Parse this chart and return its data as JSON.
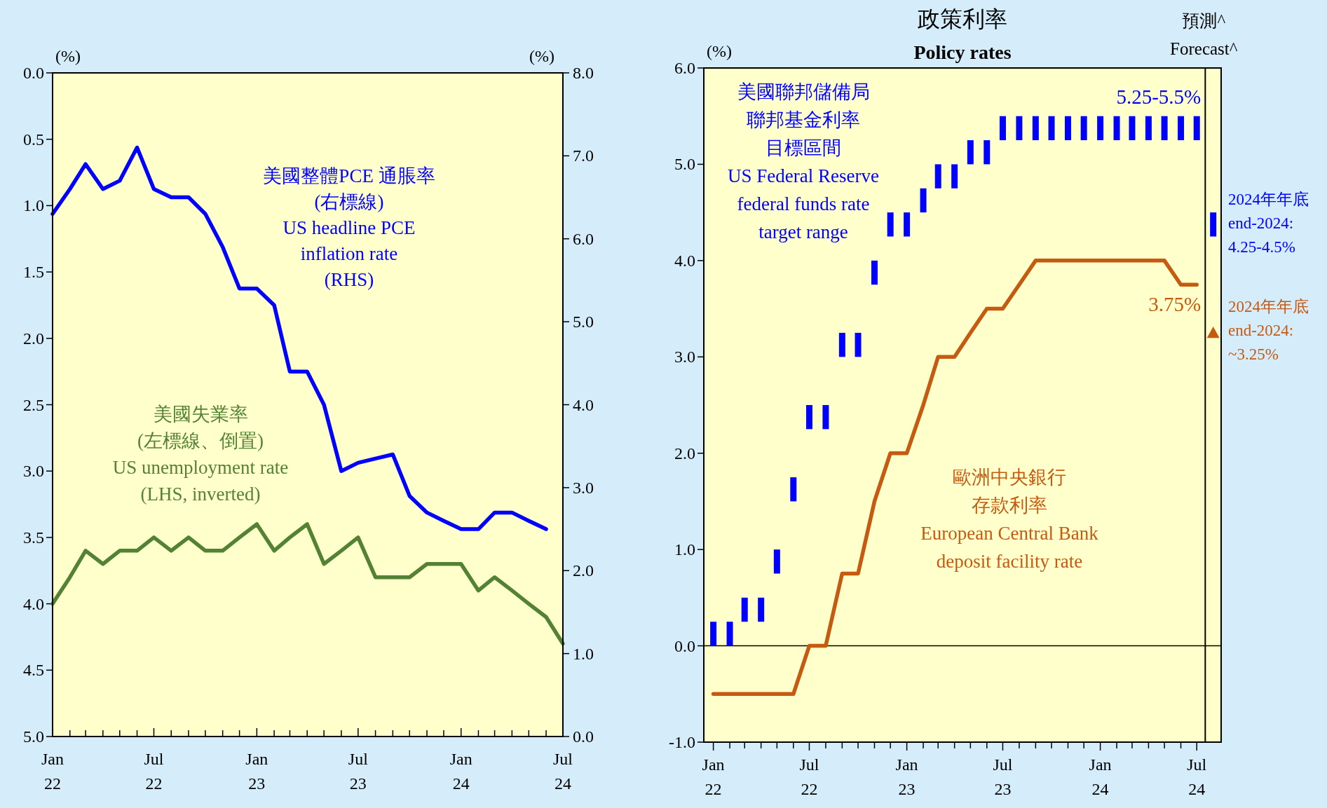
{
  "chart_data": [
    {
      "type": "line",
      "x": [
        "2022-01",
        "2022-02",
        "2022-03",
        "2022-04",
        "2022-05",
        "2022-06",
        "2022-07",
        "2022-08",
        "2022-09",
        "2022-10",
        "2022-11",
        "2022-12",
        "2023-01",
        "2023-02",
        "2023-03",
        "2023-04",
        "2023-05",
        "2023-06",
        "2023-07",
        "2023-08",
        "2023-09",
        "2023-10",
        "2023-11",
        "2023-12",
        "2024-01",
        "2024-02",
        "2024-03",
        "2024-04",
        "2024-05",
        "2024-06",
        "2024-07"
      ],
      "xlim": [
        "2022-01",
        "2024-07"
      ],
      "xticks": [
        {
          "value": "2022-01",
          "label": "Jan\n22"
        },
        {
          "value": "2022-02",
          "label": null
        },
        {
          "value": "2022-03",
          "label": null
        },
        {
          "value": "2022-04",
          "label": null
        },
        {
          "value": "2022-05",
          "label": null
        },
        {
          "value": "2022-06",
          "label": null
        },
        {
          "value": "2022-07",
          "label": "Jul\n22"
        },
        {
          "value": "2022-08",
          "label": null
        },
        {
          "value": "2022-09",
          "label": null
        },
        {
          "value": "2022-10",
          "label": null
        },
        {
          "value": "2022-11",
          "label": null
        },
        {
          "value": "2022-12",
          "label": null
        },
        {
          "value": "2023-01",
          "label": "Jan\n23"
        },
        {
          "value": "2023-02",
          "label": null
        },
        {
          "value": "2023-03",
          "label": null
        },
        {
          "value": "2023-04",
          "label": null
        },
        {
          "value": "2023-05",
          "label": null
        },
        {
          "value": "2023-06",
          "label": null
        },
        {
          "value": "2023-07",
          "label": "Jul\n23"
        },
        {
          "value": "2023-08",
          "label": null
        },
        {
          "value": "2023-09",
          "label": null
        },
        {
          "value": "2023-10",
          "label": null
        },
        {
          "value": "2023-11",
          "label": null
        },
        {
          "value": "2023-12",
          "label": null
        },
        {
          "value": "2024-01",
          "label": "Jan\n24"
        },
        {
          "value": "2024-02",
          "label": null
        },
        {
          "value": "2024-03",
          "label": null
        },
        {
          "value": "2024-04",
          "label": null
        },
        {
          "value": "2024-05",
          "label": null
        },
        {
          "value": "2024-06",
          "label": null
        },
        {
          "value": "2024-07",
          "label": "Jul\n24"
        }
      ],
      "ylim": [
        5.0,
        0.0
      ],
      "yticks": [
        {
          "value": 0,
          "label": "0.0"
        },
        {
          "value": 0.5,
          "label": "0.5"
        },
        {
          "value": 1,
          "label": "1.0"
        },
        {
          "value": 1.5,
          "label": "1.5"
        },
        {
          "value": 2,
          "label": "2.0"
        },
        {
          "value": 2.5,
          "label": "2.5"
        },
        {
          "value": 3,
          "label": "3.0"
        },
        {
          "value": 3.5,
          "label": "3.5"
        },
        {
          "value": 4,
          "label": "4.0"
        },
        {
          "value": 4.5,
          "label": "4.5"
        },
        {
          "value": 5,
          "label": "5.0"
        }
      ],
      "y2lim": [
        0,
        8
      ],
      "y2ticks": [
        {
          "value": 0,
          "label": "0.0"
        },
        {
          "value": 1,
          "label": "1.0"
        },
        {
          "value": 2,
          "label": "2.0"
        },
        {
          "value": 3,
          "label": "3.0"
        },
        {
          "value": 4,
          "label": "4.0"
        },
        {
          "value": 5,
          "label": "5.0"
        },
        {
          "value": 6,
          "label": "6.0"
        },
        {
          "value": 7,
          "label": "7.0"
        },
        {
          "value": 8,
          "label": "8.0"
        }
      ],
      "ylabel": "(%)",
      "y2label": "(%)",
      "series": [
        {
          "name": "美國整體PCE 通脹率\n(右標線)\nUS headline PCE\ninflation rate\n(RHS)",
          "color": "#0000ff",
          "axis": "y2",
          "values": [
            6.3,
            6.6,
            6.9,
            6.6,
            6.7,
            7.1,
            6.6,
            6.5,
            6.5,
            6.3,
            5.9,
            5.4,
            5.4,
            5.2,
            4.4,
            4.4,
            4.0,
            3.2,
            3.3,
            3.35,
            3.4,
            2.9,
            2.7,
            2.6,
            2.5,
            2.5,
            2.7,
            2.7,
            2.6,
            2.5,
            null
          ]
        },
        {
          "name": "美國失業率\n(左標線、倒置)\nUS unemployment rate\n(LHS, inverted)",
          "color": "#548235",
          "axis": "y",
          "values": [
            4.0,
            3.8,
            3.6,
            3.7,
            3.6,
            3.6,
            3.5,
            3.6,
            3.5,
            3.6,
            3.6,
            3.5,
            3.4,
            3.6,
            3.5,
            3.4,
            3.7,
            3.6,
            3.5,
            3.8,
            3.8,
            3.8,
            3.7,
            3.7,
            3.7,
            3.9,
            3.8,
            3.9,
            4.0,
            4.1,
            4.3
          ]
        }
      ]
    },
    {
      "type": "line",
      "title": "政策利率",
      "subtitle": "Policy rates",
      "ylabel": "(%)",
      "x": [
        "2022-01",
        "2022-02",
        "2022-03",
        "2022-04",
        "2022-05",
        "2022-06",
        "2022-07",
        "2022-08",
        "2022-09",
        "2022-10",
        "2022-11",
        "2022-12",
        "2023-01",
        "2023-02",
        "2023-03",
        "2023-04",
        "2023-05",
        "2023-06",
        "2023-07",
        "2023-08",
        "2023-09",
        "2023-10",
        "2023-11",
        "2023-12",
        "2024-01",
        "2024-02",
        "2024-03",
        "2024-04",
        "2024-05",
        "2024-06",
        "2024-07"
      ],
      "xlim": [
        "2021-12-14",
        "2024-08-16"
      ],
      "xticks": [
        {
          "value": "2022-01",
          "label": "Jan\n22"
        },
        {
          "value": "2022-02",
          "label": null
        },
        {
          "value": "2022-03",
          "label": null
        },
        {
          "value": "2022-04",
          "label": null
        },
        {
          "value": "2022-05",
          "label": null
        },
        {
          "value": "2022-06",
          "label": null
        },
        {
          "value": "2022-07",
          "label": "Jul\n22"
        },
        {
          "value": "2022-08",
          "label": null
        },
        {
          "value": "2022-09",
          "label": null
        },
        {
          "value": "2022-10",
          "label": null
        },
        {
          "value": "2022-11",
          "label": null
        },
        {
          "value": "2022-12",
          "label": null
        },
        {
          "value": "2023-01",
          "label": "Jan\n23"
        },
        {
          "value": "2023-02",
          "label": null
        },
        {
          "value": "2023-03",
          "label": null
        },
        {
          "value": "2023-04",
          "label": null
        },
        {
          "value": "2023-05",
          "label": null
        },
        {
          "value": "2023-06",
          "label": null
        },
        {
          "value": "2023-07",
          "label": "Jul\n23"
        },
        {
          "value": "2023-08",
          "label": null
        },
        {
          "value": "2023-09",
          "label": null
        },
        {
          "value": "2023-10",
          "label": null
        },
        {
          "value": "2023-11",
          "label": null
        },
        {
          "value": "2023-12",
          "label": null
        },
        {
          "value": "2024-01",
          "label": "Jan\n24"
        },
        {
          "value": "2024-02",
          "label": null
        },
        {
          "value": "2024-03",
          "label": null
        },
        {
          "value": "2024-04",
          "label": null
        },
        {
          "value": "2024-05",
          "label": null
        },
        {
          "value": "2024-06",
          "label": null
        },
        {
          "value": "2024-07",
          "label": "Jul\n24"
        }
      ],
      "ylim": [
        -1,
        6
      ],
      "yticks": [
        {
          "value": -1,
          "label": "-1.0"
        },
        {
          "value": 0,
          "label": "0.0"
        },
        {
          "value": 1,
          "label": "1.0"
        },
        {
          "value": 2,
          "label": "2.0"
        },
        {
          "value": 3,
          "label": "3.0"
        },
        {
          "value": 4,
          "label": "4.0"
        },
        {
          "value": 5,
          "label": "5.0"
        },
        {
          "value": 6,
          "label": "6.0"
        }
      ],
      "annotations": [
        {
          "text": "5.25-5.5%",
          "x": "2024-07",
          "y": 5.5
        }
      ],
      "ref_lines": [
        {
          "axis": "y",
          "value": 0,
          "color": "#000000"
        },
        {
          "axis": "x",
          "value": "2024-07-17",
          "label": "預測^\nForecast^",
          "color": "#000000"
        }
      ],
      "series": [
        {
          "type": "bar",
          "name": "美國聯邦儲備局聯邦基金利率目標區間\nUS Federal Reserve\nfederal  funds rate\ntarget range",
          "color": "#0000ff",
          "base": [
            0,
            0,
            0.25,
            0.25,
            0.75,
            1.5,
            2.25,
            2.25,
            3.0,
            3.0,
            3.75,
            4.25,
            4.25,
            4.5,
            4.75,
            4.75,
            5.0,
            5.0,
            5.25,
            5.25,
            5.25,
            5.25,
            5.25,
            5.25,
            5.25,
            5.25,
            5.25,
            5.25,
            5.25,
            5.25,
            5.25
          ],
          "values": [
            0.25,
            0.25,
            0.25,
            0.25,
            0.25,
            0.25,
            0.25,
            0.25,
            0.25,
            0.25,
            0.25,
            0.25,
            0.25,
            0.25,
            0.25,
            0.25,
            0.25,
            0.25,
            0.25,
            0.25,
            0.25,
            0.25,
            0.25,
            0.25,
            0.25,
            0.25,
            0.25,
            0.25,
            0.25,
            0.25,
            0.25
          ]
        },
        {
          "type": "bar",
          "name": "2024年年底\nend-2024:\n4.25-4.5%",
          "color": "#0000ff",
          "x": [
            "2024-08"
          ],
          "base": [
            4.25
          ],
          "values": [
            0.25
          ]
        },
        {
          "type": "line",
          "name": "歐洲中央銀行存款利率\nEuropean Central Bank\ndeposit facility  rate",
          "color": "#c55a11",
          "values": [
            -0.5,
            -0.5,
            -0.5,
            -0.5,
            -0.5,
            -0.5,
            0,
            0,
            0.75,
            0.75,
            1.5,
            2.0,
            2.0,
            2.5,
            3.0,
            3.0,
            3.25,
            3.5,
            3.5,
            3.75,
            4.0,
            4.0,
            4.0,
            4.0,
            4.0,
            4.0,
            4.0,
            4.0,
            4.0,
            3.75,
            3.75
          ],
          "value_labels": [
            null,
            null,
            null,
            null,
            null,
            null,
            null,
            null,
            null,
            null,
            null,
            null,
            null,
            null,
            null,
            null,
            null,
            null,
            null,
            null,
            null,
            null,
            null,
            null,
            null,
            null,
            null,
            null,
            null,
            null,
            "3.75%"
          ]
        },
        {
          "type": "scatter",
          "marker": "triangle",
          "name": "2024年年底\nend-2024:\n~3.25%",
          "color": "#c55a11",
          "x": [
            "2024-08"
          ],
          "values": [
            3.25
          ]
        }
      ]
    }
  ]
}
